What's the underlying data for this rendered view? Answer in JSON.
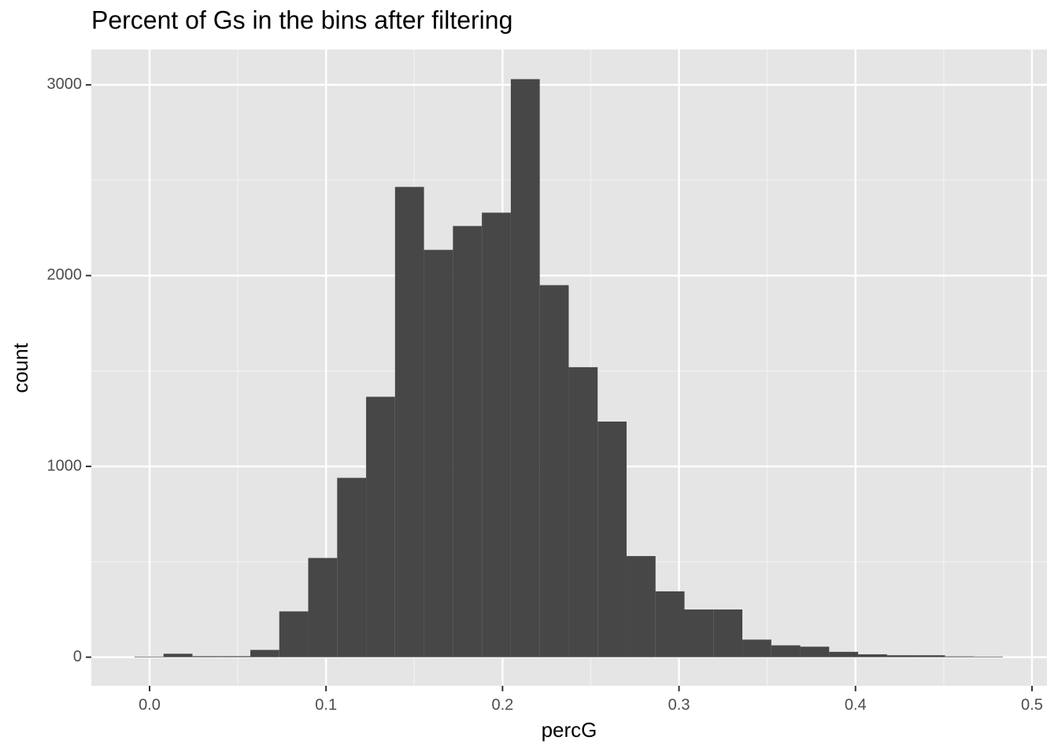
{
  "chart_data": {
    "type": "histogram",
    "title": "Percent of Gs in the bins after filtering",
    "x_label": "percG",
    "y_label": "count",
    "bins": [
      -0.0085,
      0.0079,
      0.0243,
      0.0407,
      0.0571,
      0.0735,
      0.0899,
      0.1063,
      0.1227,
      0.1391,
      0.1555,
      0.1719,
      0.1883,
      0.2047,
      0.2211,
      0.2375,
      0.2539,
      0.2703,
      0.2867,
      0.3031,
      0.3195,
      0.3359,
      0.3523,
      0.3687,
      0.3851,
      0.4015,
      0.4179,
      0.4343,
      0.4507,
      0.4671,
      0.4835
    ],
    "values": [
      3,
      18,
      5,
      5,
      38,
      240,
      520,
      940,
      1365,
      2465,
      2135,
      2260,
      2330,
      3030,
      1950,
      1520,
      1235,
      530,
      345,
      250,
      250,
      92,
      62,
      55,
      28,
      15,
      10,
      10,
      4,
      3
    ],
    "color": "#474747",
    "xlim": [
      -0.033,
      0.5085
    ],
    "ylim": [
      -150,
      3185
    ],
    "xticks": [
      {
        "value": 0,
        "label": "0.0"
      },
      0.1,
      0.2,
      0.3,
      0.4,
      0.5
    ],
    "yticks": [
      0,
      1000,
      2000,
      3000
    ],
    "xminor": [
      0.05,
      0.15,
      0.25,
      0.35,
      0.45
    ],
    "yminor": [
      500,
      1500,
      2500
    ],
    "grid": true
  }
}
